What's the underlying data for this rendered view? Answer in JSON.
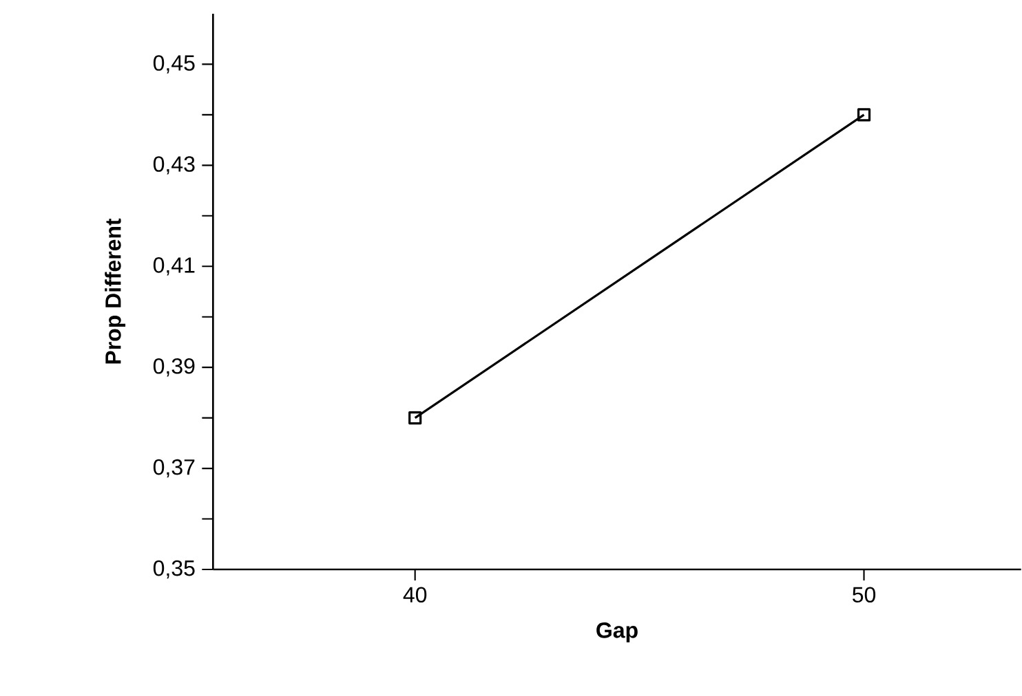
{
  "chart_data": {
    "type": "line",
    "xlabel": "Gap",
    "ylabel": "Prop  Different",
    "x": [
      40,
      50
    ],
    "series": [
      {
        "color": "#000000",
        "values": [
          0.38,
          0.44
        ]
      }
    ],
    "xlim": [
      35.5,
      53.5
    ],
    "xticks": [
      40,
      50
    ],
    "ylim": [
      0.35,
      0.46
    ],
    "yticks": [
      {
        "value": 0.35,
        "label": "0,35"
      },
      {
        "value": 0.36,
        "label": null
      },
      {
        "value": 0.37,
        "label": "0,37"
      },
      {
        "value": 0.38,
        "label": null
      },
      {
        "value": 0.39,
        "label": "0,39"
      },
      {
        "value": 0.4,
        "label": null
      },
      {
        "value": 0.41,
        "label": "0,41"
      },
      {
        "value": 0.42,
        "label": null
      },
      {
        "value": 0.43,
        "label": "0,43"
      },
      {
        "value": 0.44,
        "label": null
      },
      {
        "value": 0.45,
        "label": "0,45"
      }
    ],
    "marker": "square",
    "line_style": "solid"
  }
}
